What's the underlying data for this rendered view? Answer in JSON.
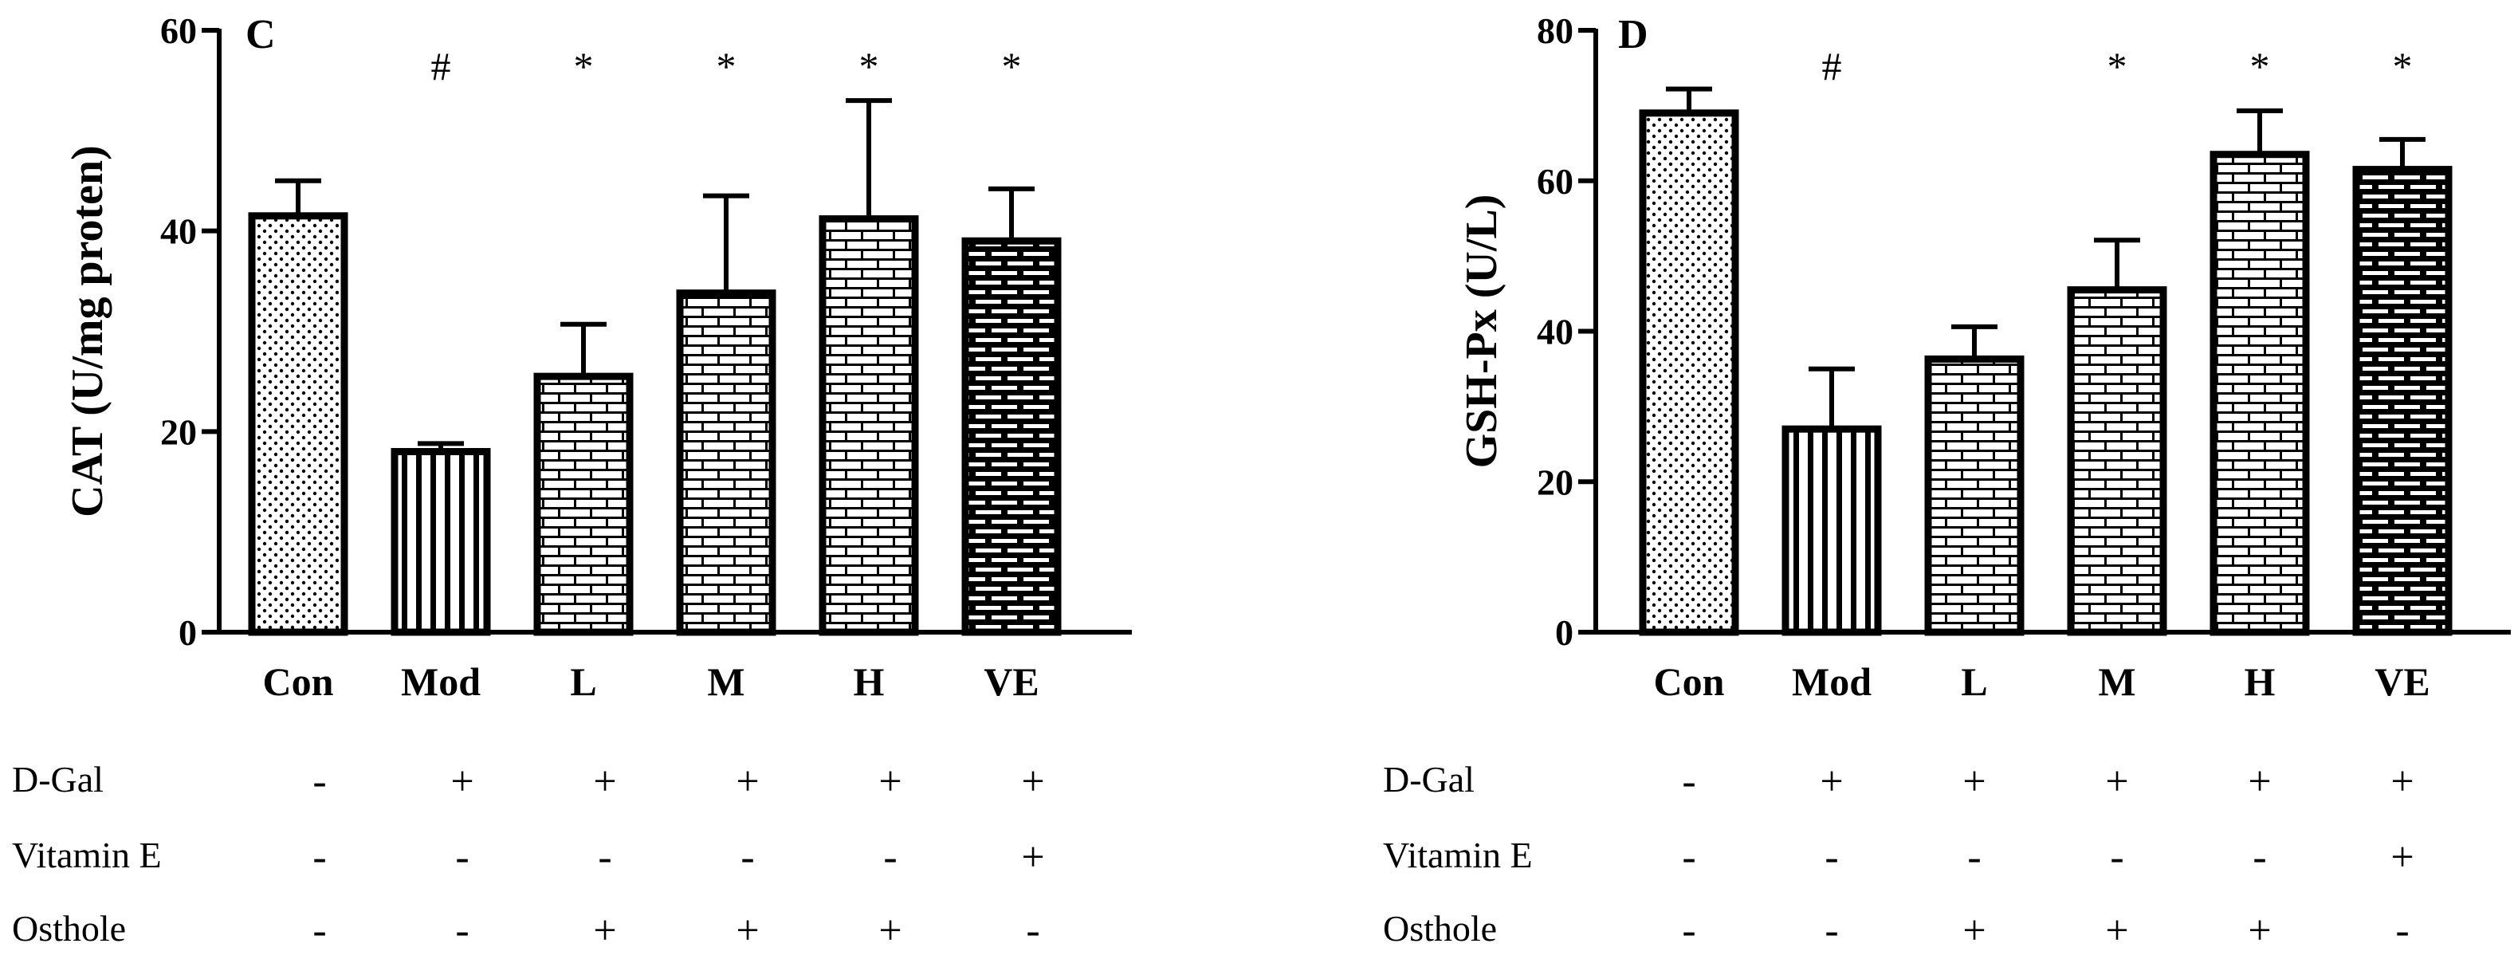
{
  "chart_data": [
    {
      "type": "bar",
      "panel": "C",
      "title": "",
      "xlabel": "",
      "ylabel": "CAT (U/mg proten)",
      "ylim": [
        0,
        60
      ],
      "yticks": [
        "0",
        "20",
        "40",
        "60"
      ],
      "categories": [
        "Con",
        "Mod",
        "L",
        "M",
        "H",
        "VE"
      ],
      "values": [
        41.5,
        18,
        25.5,
        33.8,
        41.2,
        39
      ],
      "errors": [
        3.5,
        0.8,
        5.2,
        9.7,
        11.8,
        5.2
      ],
      "patterns": [
        "dots",
        "vstripes",
        "bricks-light",
        "bricks-light",
        "bricks-light",
        "bricks-dark"
      ],
      "significance": [
        "",
        "#",
        "*",
        "*",
        "*",
        "*"
      ]
    },
    {
      "type": "bar",
      "panel": "D",
      "title": "",
      "xlabel": "",
      "ylabel": "GSH-Px (U/L)",
      "ylim": [
        0,
        80
      ],
      "yticks": [
        "0",
        "20",
        "40",
        "60",
        "80"
      ],
      "categories": [
        "Con",
        "Mod",
        "L",
        "M",
        "H",
        "VE"
      ],
      "values": [
        69,
        27,
        36.3,
        45.5,
        63.5,
        61.5
      ],
      "errors": [
        3.2,
        8,
        4.3,
        6.6,
        5.8,
        4
      ],
      "patterns": [
        "dots",
        "vstripes",
        "bricks-light",
        "bricks-light",
        "bricks-light",
        "bricks-dark"
      ],
      "significance": [
        "",
        "#",
        "",
        "*",
        "*",
        "*"
      ]
    }
  ],
  "treatment_table": {
    "rows": [
      {
        "name": "D-Gal",
        "signs": [
          "-",
          "+",
          "+",
          "+",
          "+",
          "+"
        ]
      },
      {
        "name": "Vitamin E",
        "signs": [
          "-",
          "-",
          "-",
          "-",
          "-",
          "+"
        ]
      },
      {
        "name": "Osthole",
        "signs": [
          "-",
          "-",
          "+",
          "+",
          "+",
          "-"
        ]
      }
    ]
  },
  "colors": {
    "ink": "#000000",
    "background": "#ffffff"
  }
}
